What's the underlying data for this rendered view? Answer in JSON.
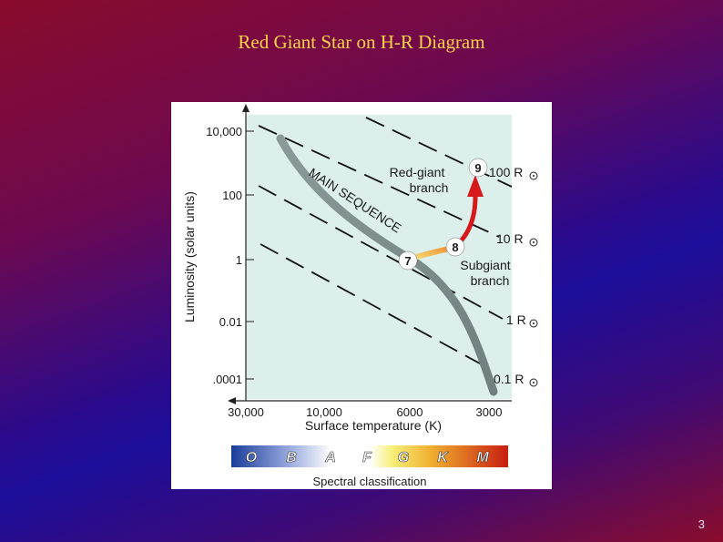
{
  "slide": {
    "title": "Red Giant Star on H-R Diagram",
    "page_number": "3"
  },
  "diagram": {
    "y_axis_label": "Luminosity (solar units)",
    "y_ticks": [
      "10,000",
      "100",
      "1",
      "0.01",
      ".0001"
    ],
    "x_axis_label": "Surface temperature (K)",
    "x_ticks": [
      "30,000",
      "10,000",
      "6000",
      "3000"
    ],
    "main_sequence_label": "MAIN SEQUENCE",
    "red_giant_label_line1": "Red-giant",
    "red_giant_label_line2": "branch",
    "subgiant_label_line1": "Subgiant",
    "subgiant_label_line2": "branch",
    "radius_labels": [
      "100 R",
      "10 R",
      "1 R",
      "0.1 R"
    ],
    "stage_markers": [
      "7",
      "8",
      "9"
    ],
    "spectral_classes": [
      "O",
      "B",
      "A",
      "F",
      "G",
      "K",
      "M"
    ],
    "spectral_label": "Spectral classification",
    "colors": {
      "plot_background": "#dcefeb",
      "red_giant_track": "#d6191b",
      "subgiant_track": "#f3a33a",
      "title": "#ffd24a"
    }
  }
}
